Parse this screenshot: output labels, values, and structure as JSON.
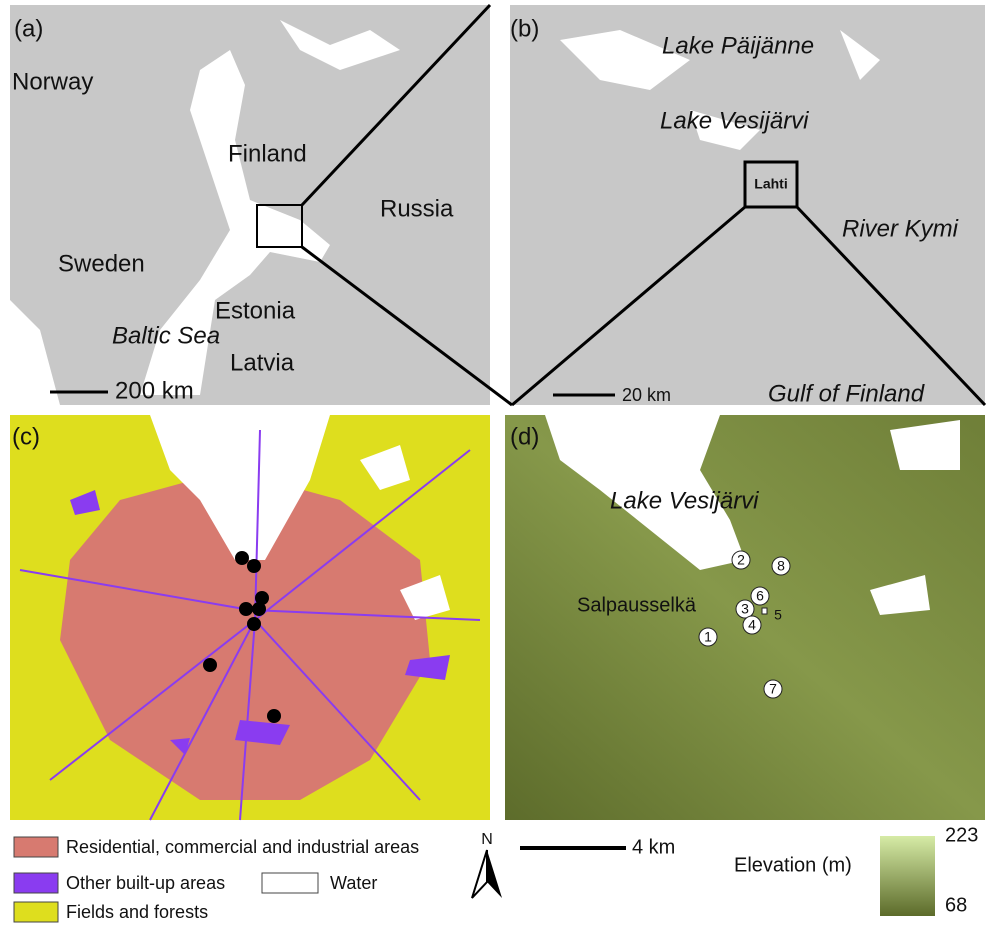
{
  "panels": {
    "a": {
      "label": "(a)",
      "places": [
        "Norway",
        "Finland",
        "Russia",
        "Sweden",
        "Estonia",
        "Baltic Sea",
        "Latvia"
      ],
      "scale": "200 km"
    },
    "b": {
      "label": "(b)",
      "places": [
        "Lake Päijänne",
        "Lake Vesijärvi",
        "Lahti",
        "River Kymi",
        "Gulf of Finland"
      ],
      "scale": "20 km"
    },
    "c": {
      "label": "(c)"
    },
    "d": {
      "label": "(d)",
      "places": [
        "Lake Vesijärvi",
        "Salpausselkä"
      ],
      "sites": [
        "1",
        "2",
        "3",
        "4",
        "5",
        "6",
        "7",
        "8"
      ]
    }
  },
  "legend": {
    "residential": "Residential, commercial and industrial areas",
    "built_up": "Other built-up areas",
    "water": "Water",
    "fields": "Fields and forests",
    "north": "N",
    "scale": "4 km",
    "elevation_title": "Elevation (m)",
    "elevation_max": 223,
    "elevation_min": 68
  }
}
